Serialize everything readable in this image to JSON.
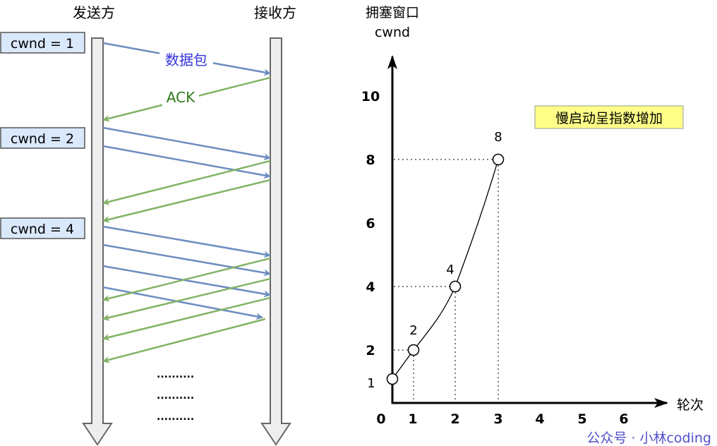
{
  "sender_label": "发送方",
  "receiver_label": "接收方",
  "cwnd_boxes": [
    "cwnd = 1",
    "cwnd = 2",
    "cwnd = 4"
  ],
  "packet_label": "数据包",
  "ack_label": "ACK",
  "ellipsis": [
    "..........",
    "..........",
    ".........."
  ],
  "colors": {
    "data": "#6c8ebf",
    "ack": "#82b366",
    "packet_text": "#3333dd",
    "ack_text": "#2d7a1a",
    "box_fill": "#dae8fc",
    "note_fill": "#ffff88"
  },
  "chart": {
    "ylabel_line1": "拥塞窗口",
    "ylabel_line2": "cwnd",
    "xlabel": "轮次",
    "y_ticks": [
      "2",
      "4",
      "6",
      "8",
      "10"
    ],
    "x_ticks": [
      "0",
      "1",
      "2",
      "3",
      "4",
      "5",
      "6"
    ],
    "note": "慢启动呈指数增加",
    "points": [
      {
        "round": 0,
        "cwnd": 1,
        "label": "1"
      },
      {
        "round": 1,
        "cwnd": 2,
        "label": "2"
      },
      {
        "round": 2,
        "cwnd": 4,
        "label": "4"
      },
      {
        "round": 3,
        "cwnd": 8,
        "label": "8"
      }
    ]
  },
  "watermark": "公众号 · 小林coding"
}
